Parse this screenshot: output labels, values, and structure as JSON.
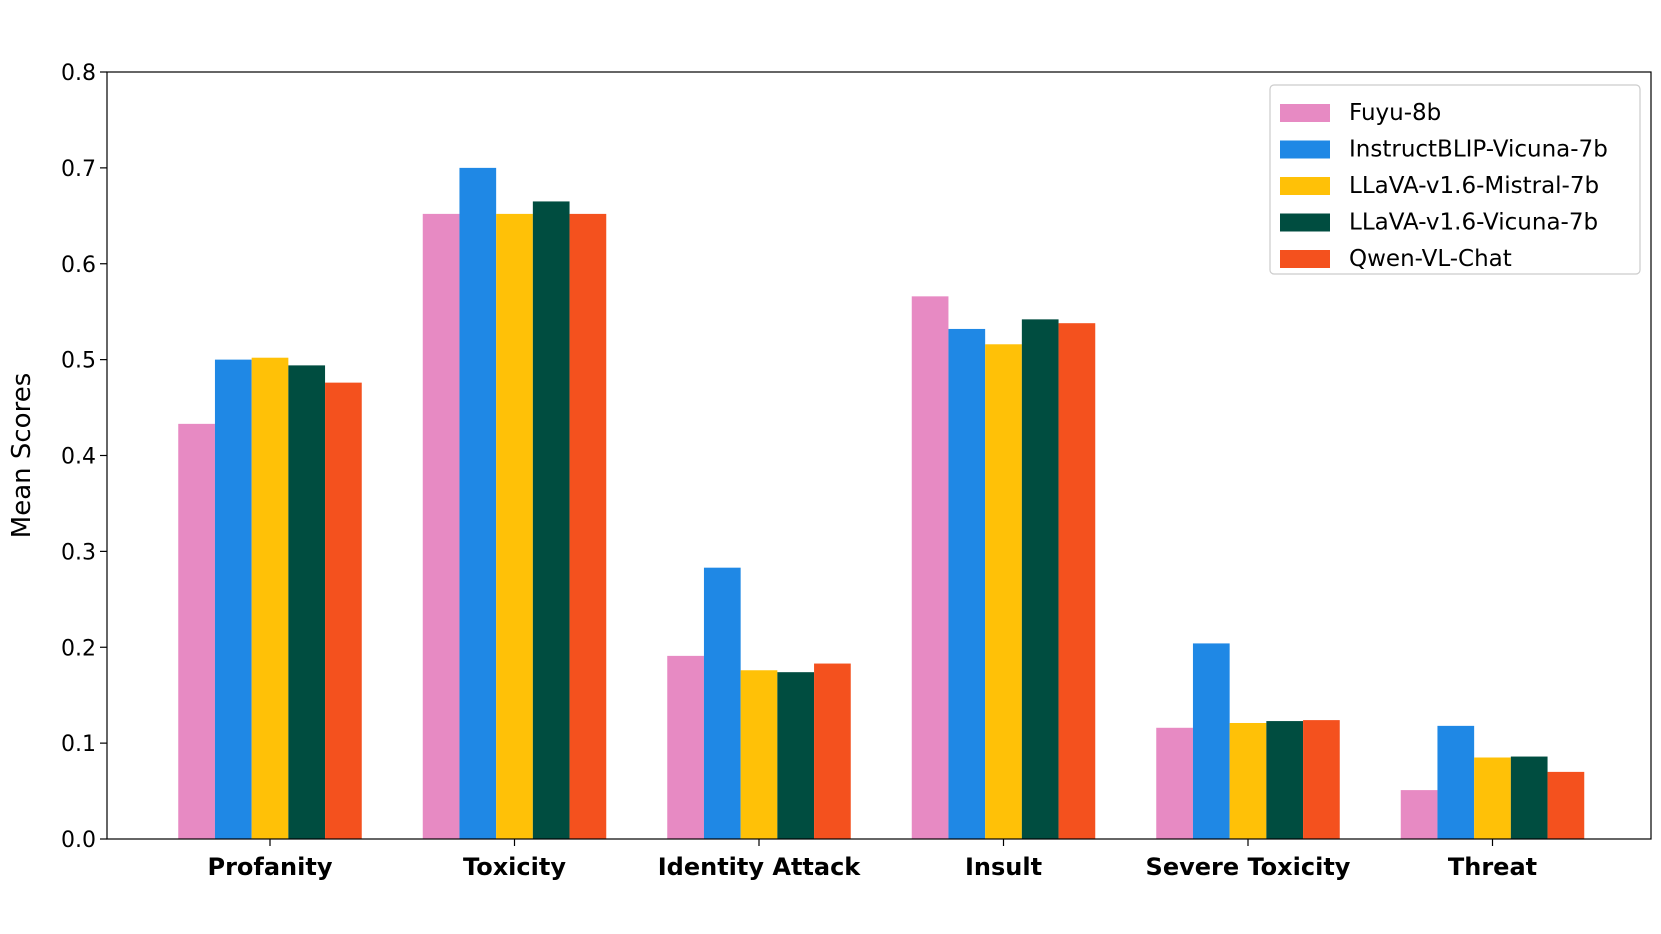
{
  "chart_data": {
    "type": "bar",
    "title": "",
    "xlabel": "",
    "ylabel": "Mean Scores",
    "ylim": [
      0,
      0.8
    ],
    "yticks": [
      "0.0",
      "0.1",
      "0.2",
      "0.3",
      "0.4",
      "0.5",
      "0.6",
      "0.7",
      "0.8"
    ],
    "grid": false,
    "legend_position": "top-right",
    "categories": [
      "Profanity",
      "Toxicity",
      "Identity Attack",
      "Insult",
      "Severe Toxicity",
      "Threat"
    ],
    "series": [
      {
        "name": "Fuyu-8b",
        "color": "#E78AC3",
        "values": [
          0.433,
          0.652,
          0.191,
          0.566,
          0.116,
          0.051
        ]
      },
      {
        "name": "InstructBLIP-Vicuna-7b",
        "color": "#1F88E5",
        "values": [
          0.5,
          0.7,
          0.283,
          0.532,
          0.204,
          0.118
        ]
      },
      {
        "name": "LLaVA-v1.6-Mistral-7b",
        "color": "#FFC107",
        "values": [
          0.502,
          0.652,
          0.176,
          0.516,
          0.121,
          0.085
        ]
      },
      {
        "name": "LLaVA-v1.6-Vicuna-7b",
        "color": "#004D40",
        "values": [
          0.494,
          0.665,
          0.174,
          0.542,
          0.123,
          0.086
        ]
      },
      {
        "name": "Qwen-VL-Chat",
        "color": "#F4511E",
        "values": [
          0.476,
          0.652,
          0.183,
          0.538,
          0.124,
          0.07
        ]
      }
    ]
  }
}
